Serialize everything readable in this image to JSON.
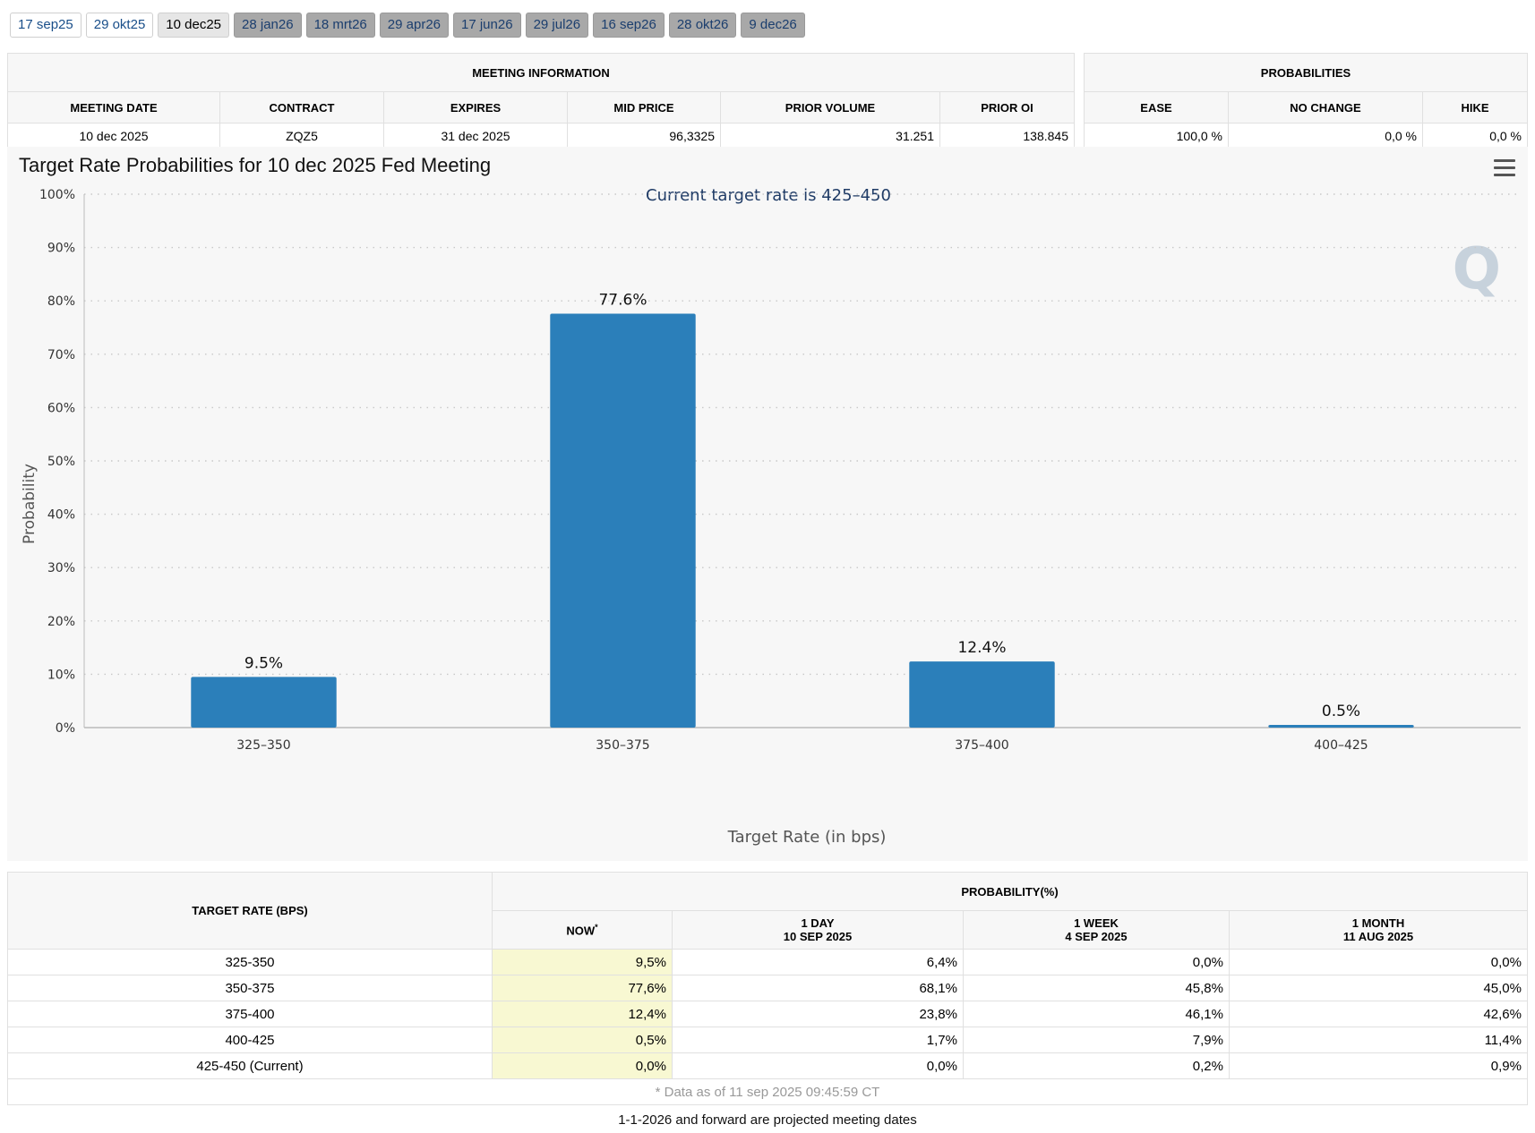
{
  "tabs": [
    {
      "label": "17 sep25",
      "state": "past"
    },
    {
      "label": "29 okt25",
      "state": "past"
    },
    {
      "label": "10 dec25",
      "state": "active"
    },
    {
      "label": "28 jan26",
      "state": "future"
    },
    {
      "label": "18 mrt26",
      "state": "future"
    },
    {
      "label": "29 apr26",
      "state": "future"
    },
    {
      "label": "17 jun26",
      "state": "future"
    },
    {
      "label": "29 jul26",
      "state": "future"
    },
    {
      "label": "16 sep26",
      "state": "future"
    },
    {
      "label": "28 okt26",
      "state": "future"
    },
    {
      "label": "9 dec26",
      "state": "future"
    }
  ],
  "meeting_info": {
    "title": "MEETING INFORMATION",
    "headers": [
      "MEETING DATE",
      "CONTRACT",
      "EXPIRES",
      "MID PRICE",
      "PRIOR VOLUME",
      "PRIOR OI"
    ],
    "values": [
      "10 dec 2025",
      "ZQZ5",
      "31 dec 2025",
      "96,3325",
      "31.251",
      "138.845"
    ]
  },
  "probabilities": {
    "title": "PROBABILITIES",
    "headers": [
      "EASE",
      "NO CHANGE",
      "HIKE"
    ],
    "values": [
      "100,0 %",
      "0,0 %",
      "0,0 %"
    ]
  },
  "chart_title": "Target Rate Probabilities for 10 dec 2025 Fed Meeting",
  "chart_data": {
    "type": "bar",
    "title": "Target Rate Probabilities for 10 dec 2025 Fed Meeting",
    "subtitle": "Current target rate is 425–450",
    "xlabel": "Target Rate (in bps)",
    "ylabel": "Probability",
    "categories": [
      "325–350",
      "350–375",
      "375–400",
      "400–425"
    ],
    "values": [
      9.5,
      77.6,
      12.4,
      0.5
    ],
    "data_labels": [
      "9.5%",
      "77.6%",
      "12.4%",
      "0.5%"
    ],
    "ylim": [
      0,
      100
    ],
    "yticks": [
      "0%",
      "10%",
      "20%",
      "30%",
      "40%",
      "50%",
      "60%",
      "70%",
      "80%",
      "90%",
      "100%"
    ],
    "grid": true,
    "bar_color": "#2b7fba"
  },
  "prob_table": {
    "rate_header": "TARGET RATE (BPS)",
    "group_header": "PROBABILITY(%)",
    "columns": [
      {
        "line1": "NOW",
        "line2": ""
      },
      {
        "line1": "1 DAY",
        "line2": "10 SEP 2025"
      },
      {
        "line1": "1 WEEK",
        "line2": "4 SEP 2025"
      },
      {
        "line1": "1 MONTH",
        "line2": "11 AUG 2025"
      }
    ],
    "rows": [
      {
        "rate": "325-350",
        "values": [
          "9,5%",
          "6,4%",
          "0,0%",
          "0,0%"
        ]
      },
      {
        "rate": "350-375",
        "values": [
          "77,6%",
          "68,1%",
          "45,8%",
          "45,0%"
        ]
      },
      {
        "rate": "375-400",
        "values": [
          "12,4%",
          "23,8%",
          "46,1%",
          "42,6%"
        ]
      },
      {
        "rate": "400-425",
        "values": [
          "0,5%",
          "1,7%",
          "7,9%",
          "11,4%"
        ]
      },
      {
        "rate": "425-450 (Current)",
        "values": [
          "0,0%",
          "0,0%",
          "0,2%",
          "0,9%"
        ]
      }
    ],
    "footnote": "* Data as of 11 sep 2025 09:45:59 CT"
  },
  "projected_note": "1-1-2026 and forward are projected meeting dates"
}
